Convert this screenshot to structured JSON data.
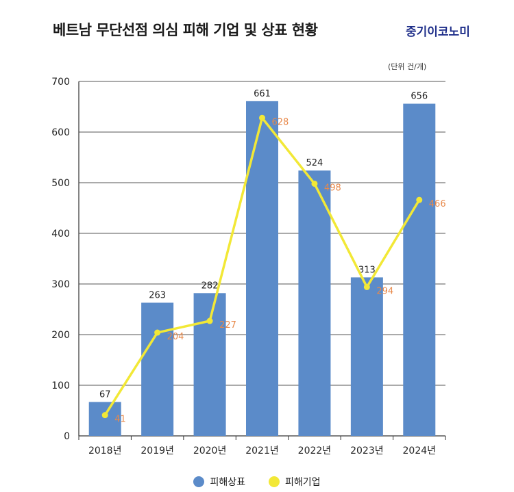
{
  "header": {
    "title": "베트남 무단선점 의심 피해 기업 및 상표 현황",
    "brand": "중기이코노미"
  },
  "chart_data": {
    "type": "bar",
    "unit_label": "(단위 건/개)",
    "categories": [
      "2018년",
      "2019년",
      "2020년",
      "2021년",
      "2022년",
      "2023년",
      "2024년"
    ],
    "y_ticks": [
      0,
      100,
      200,
      300,
      400,
      500,
      600,
      700
    ],
    "ylim": [
      0,
      700
    ],
    "grid": true,
    "legend_position": "bottom",
    "series": [
      {
        "name": "피해상표",
        "type": "bar",
        "color": "#5b8bc9",
        "label_color": "#222222",
        "values": [
          67,
          263,
          282,
          661,
          524,
          313,
          656
        ]
      },
      {
        "name": "피해기업",
        "type": "line",
        "color": "#f2e836",
        "label_color": "#e8894a",
        "values": [
          41,
          204,
          227,
          628,
          498,
          294,
          466
        ]
      }
    ]
  }
}
